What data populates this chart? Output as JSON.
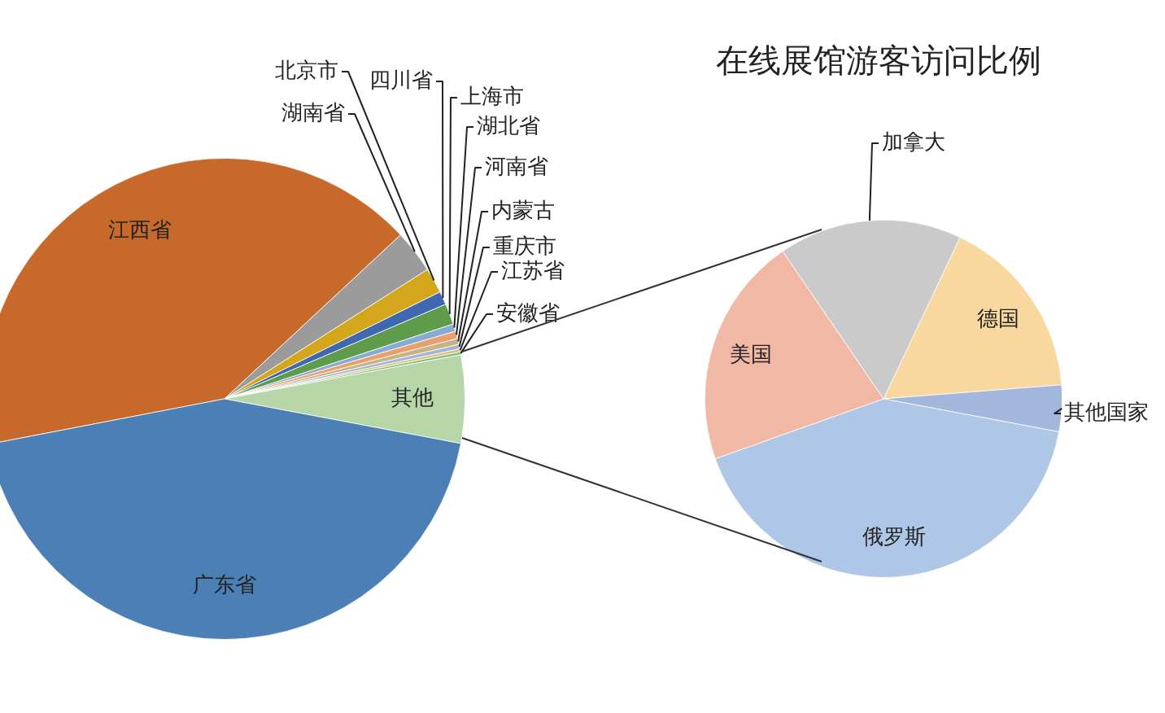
{
  "chart_data": [
    {
      "type": "pie",
      "title": "在线展馆游客访问比例",
      "categories": [
        "江西省",
        "湖南省",
        "北京市",
        "四川省",
        "上海市",
        "湖北省",
        "河南省",
        "内蒙古",
        "重庆市",
        "江苏省",
        "安徽省",
        "其他",
        "广东省"
      ],
      "values": [
        41.1,
        2.9,
        1.7,
        0.9,
        1.4,
        0.5,
        0.5,
        0.4,
        0.3,
        0.2,
        0.2,
        5.9,
        44.0
      ],
      "colors": [
        "#c8692c",
        "#9b9b9b",
        "#d4a61c",
        "#3f68b0",
        "#5e9b4a",
        "#86acd3",
        "#e9a06c",
        "#c8b388",
        "#a4b6d8",
        "#d8c27c",
        "#8fbf7a",
        "#b7d6a8",
        "#4b7fb5"
      ],
      "legend": false
    },
    {
      "type": "pie",
      "categories": [
        "德国",
        "其他国家",
        "俄罗斯",
        "美国",
        "加拿大"
      ],
      "values": [
        16.7,
        4.2,
        41.6,
        20.9,
        16.6
      ],
      "colors": [
        "#f8d89f",
        "#a3b6dc",
        "#afc7e6",
        "#f1b9a5",
        "#cacaca"
      ],
      "legend": false
    }
  ]
}
